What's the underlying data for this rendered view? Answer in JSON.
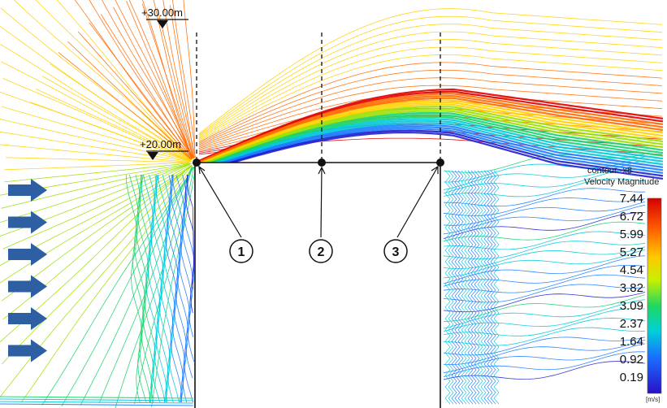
{
  "levels": [
    {
      "label": "+30.00m"
    },
    {
      "label": "+20.00m"
    }
  ],
  "points": [
    {
      "label": "1"
    },
    {
      "label": "2"
    },
    {
      "label": "3"
    }
  ],
  "wind_arrow_count": 6,
  "legend": {
    "title_line1": "contour -x8",
    "title_line2": "Velocity Magnitude",
    "ticks": [
      "7.44",
      "6.72",
      "5.99",
      "5.27",
      "4.54",
      "3.82",
      "3.09",
      "2.37",
      "1.64",
      "0.92",
      "0.19"
    ],
    "units": "[m/s]"
  },
  "colors": {
    "arrow": "#2f5fa3",
    "building_edge": "#111111",
    "colormap": [
      "#e00000",
      "#ff6a00",
      "#ffd200",
      "#9be000",
      "#16d36b",
      "#00c8d8",
      "#1a7cff",
      "#2020d0"
    ]
  }
}
